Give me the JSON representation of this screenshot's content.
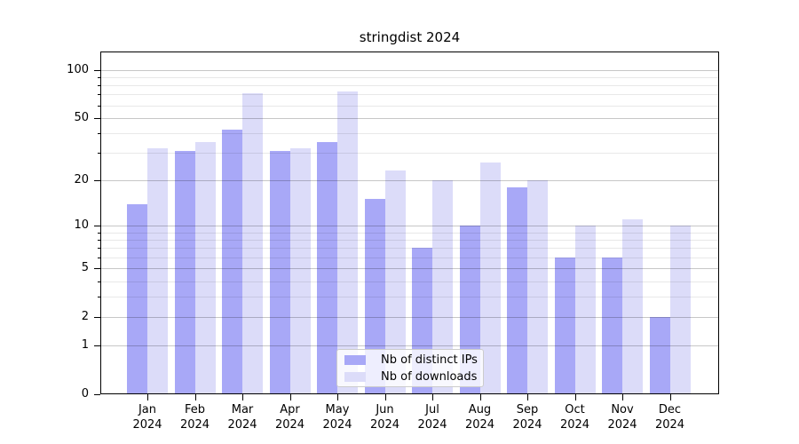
{
  "title": "stringdist 2024",
  "chart_data": {
    "type": "bar",
    "title": "stringdist 2024",
    "x_tick_months": [
      "Jan",
      "Feb",
      "Mar",
      "Apr",
      "May",
      "Jun",
      "Jul",
      "Aug",
      "Sep",
      "Oct",
      "Nov",
      "Dec"
    ],
    "x_tick_year": "2024",
    "series": [
      {
        "name": "Nb of distinct IPs",
        "color": "#a8a8f7",
        "values": [
          14,
          31,
          42,
          31,
          35,
          15,
          7,
          10,
          18,
          6,
          6,
          2
        ]
      },
      {
        "name": "Nb of downloads",
        "color": "#dcdcf9",
        "values": [
          32,
          35,
          71,
          32,
          73,
          23,
          20,
          26,
          20,
          10,
          11,
          10
        ]
      }
    ],
    "y_scale": "log(x+1)",
    "y_ticks": [
      0,
      1,
      2,
      5,
      10,
      20,
      50,
      100
    ],
    "y_minor_gridlines": [
      3,
      4,
      6,
      7,
      8,
      9,
      30,
      40,
      60,
      70,
      80,
      90
    ],
    "ylim": [
      0,
      130
    ],
    "grid": true,
    "legend_position": "lower center",
    "colors": {
      "background": "#ffffff",
      "axis": "#000000",
      "major_grid": "rgba(0,0,0,0.22)",
      "minor_grid": "rgba(0,0,0,0.09)",
      "tick_label": "#000000"
    }
  }
}
